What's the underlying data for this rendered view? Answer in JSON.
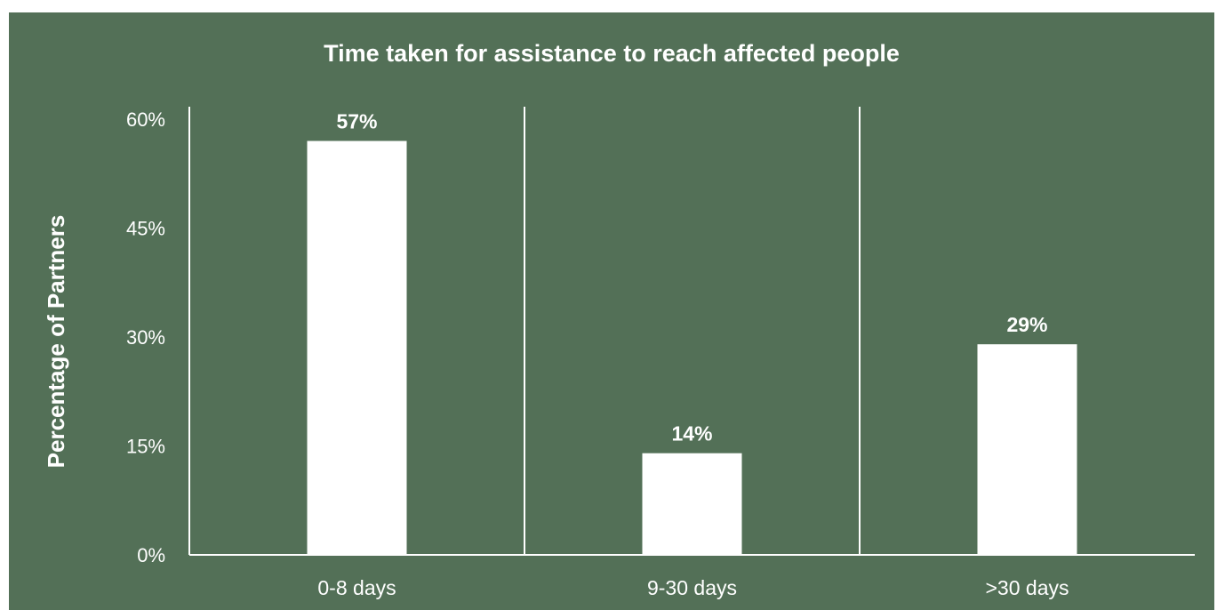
{
  "chart_data": {
    "type": "bar",
    "title": "Time taken for assistance to reach affected people",
    "xlabel": "",
    "ylabel": "Percentage of Partners",
    "categories": [
      "0-8 days",
      "9-30 days",
      ">30 days"
    ],
    "values": [
      57,
      14,
      29
    ],
    "value_labels": [
      "57%",
      "14%",
      "29%"
    ],
    "ylim": [
      0,
      60
    ],
    "y_ticks": [
      0,
      15,
      30,
      45,
      60
    ],
    "y_tick_labels": [
      "0%",
      "15%",
      "30%",
      "45%",
      "60%"
    ],
    "grid": false,
    "legend": "none",
    "colors": {
      "background": "#537057",
      "bar": "#ffffff",
      "text": "#ffffff",
      "axis": "#ffffff"
    }
  }
}
